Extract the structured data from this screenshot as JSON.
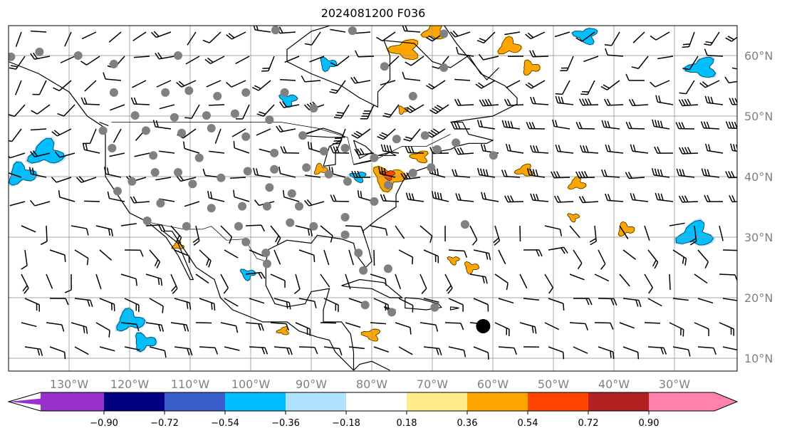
{
  "title": "2024081200 F036",
  "lon_labels": [
    "130°W",
    "120°W",
    "110°W",
    "100°W",
    "90°W",
    "80°W",
    "70°W",
    "60°W",
    "50°W",
    "40°W",
    "30°W"
  ],
  "lon_values": [
    -130,
    -120,
    -110,
    -100,
    -90,
    -80,
    -70,
    -60,
    -50,
    -40,
    -30
  ],
  "lat_labels": [
    "60°N",
    "50°N",
    "40°N",
    "30°N",
    "20°N",
    "10°N"
  ],
  "lat_values": [
    60,
    50,
    40,
    30,
    20,
    10
  ],
  "extent": {
    "lon": [
      -140,
      -19.6
    ],
    "lat": [
      7.9,
      64.9
    ]
  },
  "colorbar": {
    "ticks": [
      "−0.90",
      "−0.72",
      "−0.54",
      "−0.36",
      "−0.18",
      "0.18",
      "0.36",
      "0.54",
      "0.72",
      "0.90"
    ],
    "colors": [
      "#9932cc",
      "#000080",
      "#3a5fcd",
      "#00bfff",
      "#b0e2ff",
      "#ffffff",
      "#ffec8b",
      "#ffa500",
      "#ff4500",
      "#b22222",
      "#ff82ab"
    ]
  },
  "stations": [
    [
      -139.6,
      59.8
    ],
    [
      -134.9,
      60.6
    ],
    [
      -128.5,
      60
    ],
    [
      -122.6,
      58.6
    ],
    [
      -112,
      60
    ],
    [
      -95.9,
      64.2
    ],
    [
      -83.2,
      64.1
    ],
    [
      -68.1,
      63.6
    ],
    [
      -122.6,
      53.9
    ],
    [
      -114.1,
      53.9
    ],
    [
      -110.2,
      54.2
    ],
    [
      -105.5,
      53.3
    ],
    [
      -100.8,
      53.9
    ],
    [
      -94.4,
      53.9
    ],
    [
      -89.6,
      51.3
    ],
    [
      -119.1,
      50.1
    ],
    [
      -112.6,
      49.8
    ],
    [
      -107.3,
      50.1
    ],
    [
      -102.6,
      50.4
    ],
    [
      -96.9,
      49.4
    ],
    [
      -124.4,
      47.6
    ],
    [
      -117.3,
      47.6
    ],
    [
      -111.4,
      47.2
    ],
    [
      -106.5,
      48
    ],
    [
      -100.8,
      46.6
    ],
    [
      -91.4,
      46.8
    ],
    [
      -87.9,
      44.2
    ],
    [
      -84.4,
      44.7
    ],
    [
      -122.9,
      44.7
    ],
    [
      -116.1,
      43.5
    ],
    [
      -108.5,
      43.1
    ],
    [
      -96.1,
      43.9
    ],
    [
      -115.8,
      40.7
    ],
    [
      -112,
      40.7
    ],
    [
      -104.9,
      39.8
    ],
    [
      -100.5,
      40.9
    ],
    [
      -96.1,
      41.2
    ],
    [
      -90.8,
      41.5
    ],
    [
      -87.1,
      40.4
    ],
    [
      -84,
      39.2
    ],
    [
      -119.6,
      39.2
    ],
    [
      -109.6,
      38.8
    ],
    [
      -96.9,
      38.2
    ],
    [
      -93.2,
      37.2
    ],
    [
      -122,
      37.6
    ],
    [
      -114.9,
      35.6
    ],
    [
      -106.5,
      34.8
    ],
    [
      -101.4,
      35.1
    ],
    [
      -97.3,
      35.1
    ],
    [
      -92,
      35.1
    ],
    [
      -84.4,
      33.3
    ],
    [
      -79.6,
      35.9
    ],
    [
      -117.1,
      32.7
    ],
    [
      -110.6,
      31.8
    ],
    [
      -102,
      31.8
    ],
    [
      -93.5,
      32.4
    ],
    [
      -89.6,
      31.8
    ],
    [
      -84.4,
      30.4
    ],
    [
      -100.8,
      29.2
    ],
    [
      -97.5,
      27.4
    ],
    [
      -97.3,
      25.6
    ],
    [
      -82.2,
      27.4
    ],
    [
      -81.4,
      24.5
    ],
    [
      -77.3,
      24.8
    ],
    [
      -81.1,
      18.8
    ],
    [
      -76.7,
      17.6
    ],
    [
      -69.6,
      18.4
    ],
    [
      -64.6,
      32.1
    ],
    [
      -77.9,
      58.2
    ],
    [
      -73.2,
      53.3
    ],
    [
      -68.1,
      58
    ],
    [
      -75.9,
      46.2
    ],
    [
      -71.2,
      46.8
    ],
    [
      -69.2,
      44.5
    ],
    [
      -66.1,
      45.6
    ],
    [
      -59.9,
      43.5
    ],
    [
      -70.2,
      41.5
    ],
    [
      -73.2,
      40.6
    ],
    [
      -79.6,
      43.1
    ],
    [
      -77.3,
      38.6
    ]
  ],
  "big_marker": [
    -61.6,
    15.3
  ],
  "fields": [
    {
      "lon": -133.8,
      "lat": 43.9,
      "r": 3,
      "level": 0.45,
      "color": "#00bfff"
    },
    {
      "lon": -137.9,
      "lat": 40.4,
      "r": 2.5,
      "level": 0.45,
      "color": "#00bfff"
    },
    {
      "lon": -87.3,
      "lat": 58.6,
      "r": 1.5,
      "level": 0.45,
      "color": "#00bfff"
    },
    {
      "lon": -93.8,
      "lat": 52.7,
      "r": 1.5,
      "level": 0.45,
      "color": "#00bfff"
    },
    {
      "lon": -44.6,
      "lat": 63.3,
      "r": 2,
      "level": 0.45,
      "color": "#00bfff"
    },
    {
      "lon": -25.4,
      "lat": 58,
      "r": 2.5,
      "level": 0.45,
      "color": "#00bfff"
    },
    {
      "lon": -26.6,
      "lat": 30.4,
      "r": 3,
      "level": 0.45,
      "color": "#00bfff"
    },
    {
      "lon": -120,
      "lat": 16.2,
      "r": 2.5,
      "level": 0.45,
      "color": "#00bfff"
    },
    {
      "lon": -117.6,
      "lat": 12.7,
      "r": 2,
      "level": 0.45,
      "color": "#00bfff"
    },
    {
      "lon": -100.5,
      "lat": 23.9,
      "r": 1.3,
      "level": 0.45,
      "color": "#00bfff"
    },
    {
      "lon": -82.2,
      "lat": 40,
      "r": 1.3,
      "level": 0.45,
      "color": "#00bfff"
    },
    {
      "lon": -74.4,
      "lat": 61,
      "r": 2.5,
      "level": 0.6,
      "color": "#ffa500"
    },
    {
      "lon": -69.6,
      "lat": 63.9,
      "r": 2,
      "level": 0.6,
      "color": "#ffa500"
    },
    {
      "lon": -57.3,
      "lat": 61.5,
      "r": 2,
      "level": 0.6,
      "color": "#ffa500"
    },
    {
      "lon": -53.8,
      "lat": 58,
      "r": 1.6,
      "level": 0.6,
      "color": "#ffa500"
    },
    {
      "lon": -77.3,
      "lat": 39.8,
      "r": 2.8,
      "level": 0.6,
      "color": "#ffa500"
    },
    {
      "lon": -77.3,
      "lat": 40.3,
      "r": 1.2,
      "level": 0.75,
      "color": "#ff4500"
    },
    {
      "lon": -72,
      "lat": 43.3,
      "r": 1.5,
      "level": 0.6,
      "color": "#ffa500"
    },
    {
      "lon": -54.7,
      "lat": 41,
      "r": 1.5,
      "level": 0.6,
      "color": "#ffa500"
    },
    {
      "lon": -46.1,
      "lat": 38.8,
      "r": 1.5,
      "level": 0.6,
      "color": "#ffa500"
    },
    {
      "lon": -38.1,
      "lat": 31.3,
      "r": 1.5,
      "level": 0.6,
      "color": "#ffa500"
    },
    {
      "lon": -63.6,
      "lat": 25,
      "r": 1.3,
      "level": 0.6,
      "color": "#ffa500"
    },
    {
      "lon": -66.5,
      "lat": 26.2,
      "r": 1,
      "level": 0.6,
      "color": "#ffa500"
    },
    {
      "lon": -80,
      "lat": 13.9,
      "r": 1.5,
      "level": 0.6,
      "color": "#ffa500"
    },
    {
      "lon": -94.6,
      "lat": 14.5,
      "r": 1,
      "level": 0.6,
      "color": "#ffa500"
    },
    {
      "lon": -112,
      "lat": 28.6,
      "r": 1,
      "level": 0.6,
      "color": "#ffa500"
    },
    {
      "lon": -88.5,
      "lat": 41.2,
      "r": 1.2,
      "level": 0.6,
      "color": "#ffa500"
    },
    {
      "lon": -74.9,
      "lat": 51,
      "r": 0.9,
      "level": 0.6,
      "color": "#ffa500"
    },
    {
      "lon": -46.7,
      "lat": 33.3,
      "r": 1,
      "level": 0.6,
      "color": "#ffa500"
    }
  ]
}
